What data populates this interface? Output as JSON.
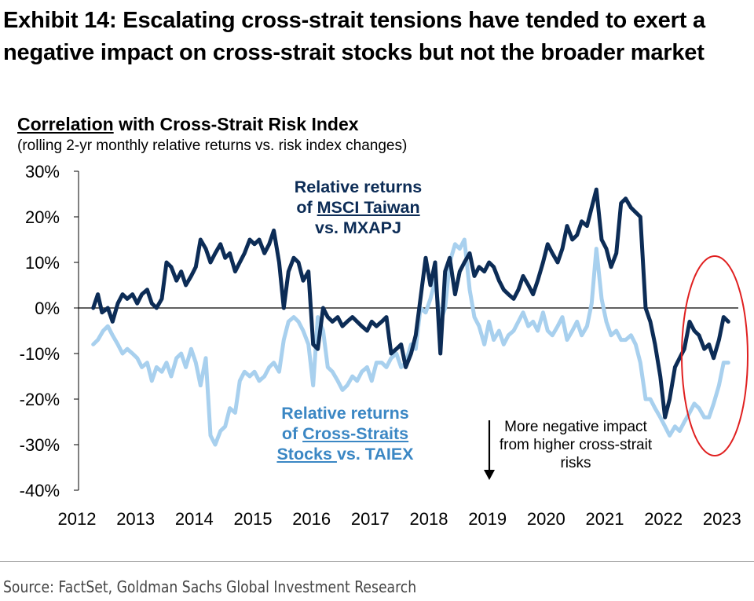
{
  "header": {
    "title": "Exhibit 14: Escalating cross-strait tensions have tended to exert a negative impact on cross-strait stocks but not the broader market"
  },
  "chart_header": {
    "title_underlined": "Correlation",
    "title_rest": " with Cross-Strait Risk Index",
    "subtitle": "(rolling 2-yr monthly relative returns vs. risk index changes)"
  },
  "annotations": {
    "taiwan_line1": "Relative returns",
    "taiwan_line2_prefix": "of ",
    "taiwan_line2_underlined": "MSCI Taiwan ",
    "taiwan_line3": "vs. MXAPJ",
    "cs_line1": "Relative returns",
    "cs_line2_prefix": "of ",
    "cs_line2_underlined": "Cross-Straits",
    "cs_line3_underlined": "Stocks ",
    "cs_line3_rest": "vs. TAIEX",
    "note": "More negative impact from higher cross-strait risks"
  },
  "footer": {
    "source": "Source: FactSet, Goldman Sachs Global Investment Research"
  },
  "colors": {
    "taiwan_series": "#0c2c56",
    "cross_strait_series": "#a8d0ee",
    "highlight_ellipse": "#e02020",
    "axis": "#000000"
  },
  "chart_data": {
    "type": "line",
    "ylim": [
      -40,
      30
    ],
    "yticks": [
      30,
      20,
      10,
      0,
      -10,
      -20,
      -30,
      -40
    ],
    "ytick_labels": [
      "30%",
      "20%",
      "10%",
      "0%",
      "-10%",
      "-20%",
      "-30%",
      "-40%"
    ],
    "xlim": [
      2012,
      2023.25
    ],
    "xticks": [
      2012,
      2013,
      2014,
      2015,
      2016,
      2017,
      2018,
      2019,
      2020,
      2021,
      2022,
      2023
    ],
    "xtick_labels": [
      "2012",
      "2013",
      "2014",
      "2015",
      "2016",
      "2017",
      "2018",
      "2019",
      "2020",
      "2021",
      "2022",
      "2023"
    ],
    "grid": false,
    "series": [
      {
        "name": "Relative returns of MSCI Taiwan vs. MXAPJ",
        "x": [
          2012.25,
          2012.33,
          2012.4,
          2012.5,
          2012.58,
          2012.67,
          2012.75,
          2012.83,
          2012.92,
          2013.0,
          2013.08,
          2013.17,
          2013.25,
          2013.33,
          2013.42,
          2013.5,
          2013.58,
          2013.67,
          2013.75,
          2013.83,
          2013.92,
          2014.0,
          2014.08,
          2014.17,
          2014.25,
          2014.33,
          2014.42,
          2014.5,
          2014.58,
          2014.67,
          2014.75,
          2014.83,
          2014.92,
          2015.0,
          2015.08,
          2015.17,
          2015.25,
          2015.33,
          2015.42,
          2015.5,
          2015.58,
          2015.67,
          2015.75,
          2015.83,
          2015.92,
          2016.0,
          2016.08,
          2016.17,
          2016.25,
          2016.33,
          2016.42,
          2016.5,
          2016.58,
          2016.67,
          2016.75,
          2016.83,
          2016.92,
          2017.0,
          2017.08,
          2017.17,
          2017.25,
          2017.33,
          2017.42,
          2017.5,
          2017.58,
          2017.67,
          2017.75,
          2017.83,
          2017.92,
          2018.0,
          2018.08,
          2018.17,
          2018.25,
          2018.33,
          2018.42,
          2018.5,
          2018.58,
          2018.67,
          2018.75,
          2018.83,
          2018.92,
          2019.0,
          2019.08,
          2019.17,
          2019.25,
          2019.33,
          2019.42,
          2019.5,
          2019.58,
          2019.67,
          2019.75,
          2019.83,
          2019.92,
          2020.0,
          2020.08,
          2020.17,
          2020.25,
          2020.33,
          2020.42,
          2020.5,
          2020.58,
          2020.67,
          2020.75,
          2020.83,
          2020.92,
          2021.0,
          2021.08,
          2021.17,
          2021.25,
          2021.33,
          2021.42,
          2021.5,
          2021.58,
          2021.67,
          2021.75,
          2021.83,
          2021.92,
          2022.0,
          2022.08,
          2022.17,
          2022.25,
          2022.33,
          2022.42,
          2022.5,
          2022.58,
          2022.67,
          2022.75,
          2022.83,
          2022.92,
          2023.0,
          2023.08
        ],
        "y": [
          0,
          3,
          -1,
          0,
          -3,
          1,
          3,
          2,
          3,
          1,
          3,
          4,
          1,
          0,
          2,
          10,
          9,
          6,
          8,
          5,
          7,
          9,
          15,
          13,
          10,
          12,
          14,
          11,
          12,
          8,
          10,
          12,
          15,
          14,
          15,
          12,
          14,
          17,
          10,
          0,
          8,
          11,
          10,
          6,
          8,
          -8,
          -9,
          0,
          -2,
          -3,
          -2,
          -4,
          -3,
          -2,
          -3,
          -4,
          -5,
          -3,
          -4,
          -3,
          -2,
          -10,
          -9,
          -8,
          -13,
          -10,
          -6,
          2,
          11,
          5,
          10,
          -10,
          8,
          11,
          3,
          8,
          10,
          12,
          7,
          9,
          8,
          10,
          9,
          6,
          4,
          3,
          2,
          4,
          7,
          5,
          3,
          6,
          10,
          14,
          12,
          10,
          13,
          18,
          15,
          16,
          19,
          18,
          22,
          26,
          15,
          13,
          9,
          12,
          23,
          24,
          22,
          21,
          20,
          0,
          -3,
          -8,
          -15,
          -24,
          -20,
          -13,
          -11,
          -9,
          -3,
          -5,
          -6,
          -9,
          -8,
          -11,
          -7,
          -2,
          -3
        ]
      },
      {
        "name": "Relative returns of Cross-Straits Stocks vs. TAIEX",
        "x": [
          2012.25,
          2012.33,
          2012.42,
          2012.5,
          2012.58,
          2012.67,
          2012.75,
          2012.83,
          2012.92,
          2013.0,
          2013.08,
          2013.17,
          2013.25,
          2013.33,
          2013.42,
          2013.5,
          2013.58,
          2013.67,
          2013.75,
          2013.83,
          2013.92,
          2014.0,
          2014.08,
          2014.17,
          2014.25,
          2014.33,
          2014.42,
          2014.5,
          2014.58,
          2014.67,
          2014.75,
          2014.83,
          2014.92,
          2015.0,
          2015.08,
          2015.17,
          2015.25,
          2015.33,
          2015.42,
          2015.5,
          2015.58,
          2015.67,
          2015.75,
          2015.83,
          2015.92,
          2016.0,
          2016.08,
          2016.17,
          2016.25,
          2016.33,
          2016.42,
          2016.5,
          2016.58,
          2016.67,
          2016.75,
          2016.83,
          2016.92,
          2017.0,
          2017.08,
          2017.17,
          2017.25,
          2017.33,
          2017.42,
          2017.5,
          2017.58,
          2017.67,
          2017.75,
          2017.83,
          2017.92,
          2018.0,
          2018.08,
          2018.17,
          2018.25,
          2018.33,
          2018.42,
          2018.5,
          2018.58,
          2018.67,
          2018.75,
          2018.83,
          2018.92,
          2019.0,
          2019.08,
          2019.17,
          2019.25,
          2019.33,
          2019.42,
          2019.5,
          2019.58,
          2019.67,
          2019.75,
          2019.83,
          2019.92,
          2020.0,
          2020.08,
          2020.17,
          2020.25,
          2020.33,
          2020.42,
          2020.5,
          2020.58,
          2020.67,
          2020.75,
          2020.83,
          2020.92,
          2021.0,
          2021.08,
          2021.17,
          2021.25,
          2021.33,
          2021.42,
          2021.5,
          2021.58,
          2021.67,
          2021.75,
          2021.83,
          2021.92,
          2022.0,
          2022.08,
          2022.17,
          2022.25,
          2022.33,
          2022.42,
          2022.5,
          2022.58,
          2022.67,
          2022.75,
          2022.83,
          2022.92,
          2023.0,
          2023.08
        ],
        "y": [
          -8,
          -7,
          -5,
          -4,
          -6,
          -8,
          -10,
          -9,
          -10,
          -11,
          -13,
          -12,
          -16,
          -13,
          -14,
          -12,
          -15,
          -11,
          -10,
          -13,
          -9,
          -12,
          -17,
          -11,
          -28,
          -30,
          -27,
          -26,
          -22,
          -23,
          -16,
          -14,
          -15,
          -14,
          -16,
          -15,
          -13,
          -12,
          -14,
          -7,
          -3,
          -2,
          -3,
          -5,
          -8,
          -17,
          -2,
          -5,
          -13,
          -14,
          -16,
          -18,
          -17,
          -15,
          -16,
          -14,
          -13,
          -16,
          -12,
          -12,
          -13,
          -11,
          -10,
          -13,
          -12,
          -8,
          -9,
          0,
          -1,
          2,
          6,
          -3,
          0,
          10,
          14,
          13,
          15,
          4,
          -2,
          -4,
          -8,
          -3,
          -7,
          -5,
          -8,
          -6,
          -5,
          -3,
          -1,
          -4,
          -3,
          -5,
          -1,
          -5,
          -6,
          -4,
          -2,
          -7,
          -5,
          -3,
          -6,
          -4,
          1,
          13,
          2,
          -3,
          -6,
          -5,
          -7,
          -7,
          -6,
          -8,
          -12,
          -20,
          -20,
          -22,
          -24,
          -26,
          -28,
          -26,
          -27,
          -25,
          -23,
          -21,
          -22,
          -24,
          -24,
          -21,
          -17,
          -12,
          -12
        ]
      }
    ]
  }
}
